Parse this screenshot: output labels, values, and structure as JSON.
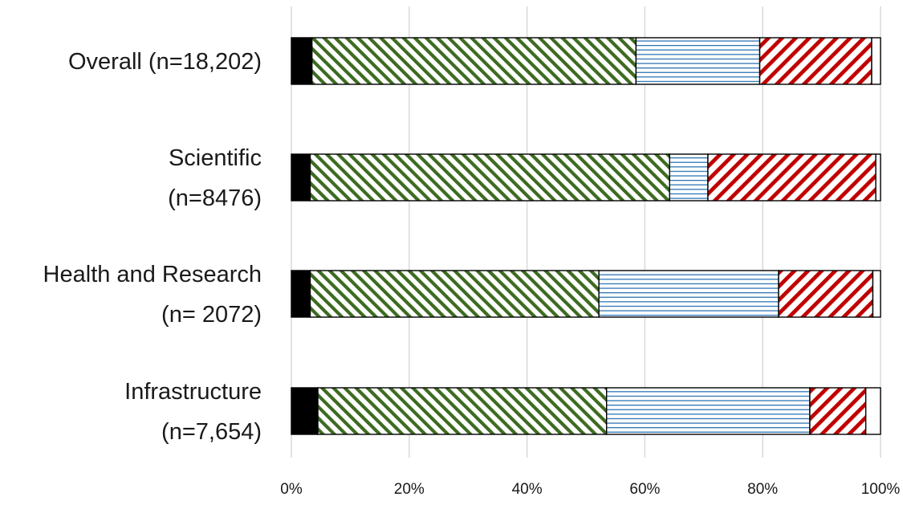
{
  "chart_data": {
    "type": "bar",
    "orientation": "horizontal",
    "stacked": true,
    "normalized": true,
    "categories": [
      [
        "Overall (n=18,202)"
      ],
      [
        "Scientific",
        "(n=8476)"
      ],
      [
        "Health and Research",
        "(n= 2072)"
      ],
      [
        "Infrastructure",
        "(n=7,654)"
      ]
    ],
    "series": [
      {
        "fill": "solid",
        "color": "#000000",
        "values": [
          3.5,
          3.2,
          3.2,
          4.5
        ]
      },
      {
        "fill": "diagonal",
        "color": "#3d6b21",
        "values": [
          55,
          61,
          49,
          49
        ]
      },
      {
        "fill": "horizontal",
        "color": "#2e75b6",
        "values": [
          21,
          6.5,
          30.5,
          34.5
        ]
      },
      {
        "fill": "diagonal",
        "color": "#c00000",
        "values": [
          19,
          28.5,
          16,
          9.5
        ]
      },
      {
        "fill": "solid",
        "color": "#ffffff",
        "values": [
          1.5,
          0.8,
          1.3,
          2.5
        ]
      }
    ],
    "xaxis": {
      "range": [
        0,
        100
      ],
      "ticks": [
        0,
        20,
        40,
        60,
        80,
        100
      ],
      "tick_labels": [
        "0%",
        "20%",
        "40%",
        "60%",
        "80%",
        "100%"
      ]
    },
    "grid": true,
    "legend": false,
    "title": "",
    "xlabel": "",
    "ylabel": ""
  }
}
